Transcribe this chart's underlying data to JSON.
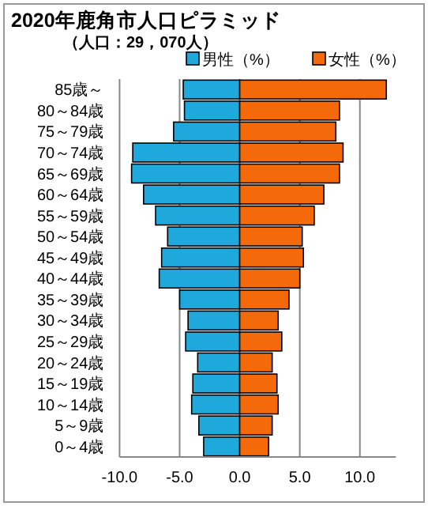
{
  "chart_data": {
    "type": "bar",
    "orientation": "horizontal",
    "stacked": true,
    "title": "2020年鹿角市人口ピラミッド",
    "subtitle": "（人口：29，070人）",
    "categories": [
      "85歳～",
      "80～84歳",
      "75～79歳",
      "70～74歳",
      "65～69歳",
      "60～64歳",
      "55～59歳",
      "50～54歳",
      "45～49歳",
      "40～44歳",
      "35～39歳",
      "30～34歳",
      "25～29歳",
      "20～24歳",
      "15～19歳",
      "10～14歳",
      "5～9歳",
      "0～4歳"
    ],
    "series": [
      {
        "name": "男性（%）",
        "color": "#1fa8dc",
        "values": [
          -4.7,
          -4.6,
          -5.5,
          -8.9,
          -9.0,
          -8.0,
          -7.0,
          -6.0,
          -6.5,
          -6.7,
          -5.0,
          -4.3,
          -4.5,
          -3.5,
          -3.9,
          -4.0,
          -3.4,
          -3.0
        ]
      },
      {
        "name": "女性（%）",
        "color": "#f46a0a",
        "values": [
          12.2,
          8.3,
          8.0,
          8.6,
          8.3,
          7.0,
          6.2,
          5.2,
          5.3,
          5.0,
          4.1,
          3.2,
          3.5,
          2.7,
          3.1,
          3.2,
          2.7,
          2.4
        ]
      }
    ],
    "xlim": [
      -10,
      13
    ],
    "xticks": [
      {
        "value": -10,
        "label": "-10.0"
      },
      {
        "value": -5,
        "label": "-5.0"
      },
      {
        "value": 0,
        "label": "0.0"
      },
      {
        "value": 5,
        "label": "5.0"
      },
      {
        "value": 10,
        "label": "10.0"
      }
    ],
    "grid": "x",
    "legend": "top right"
  }
}
